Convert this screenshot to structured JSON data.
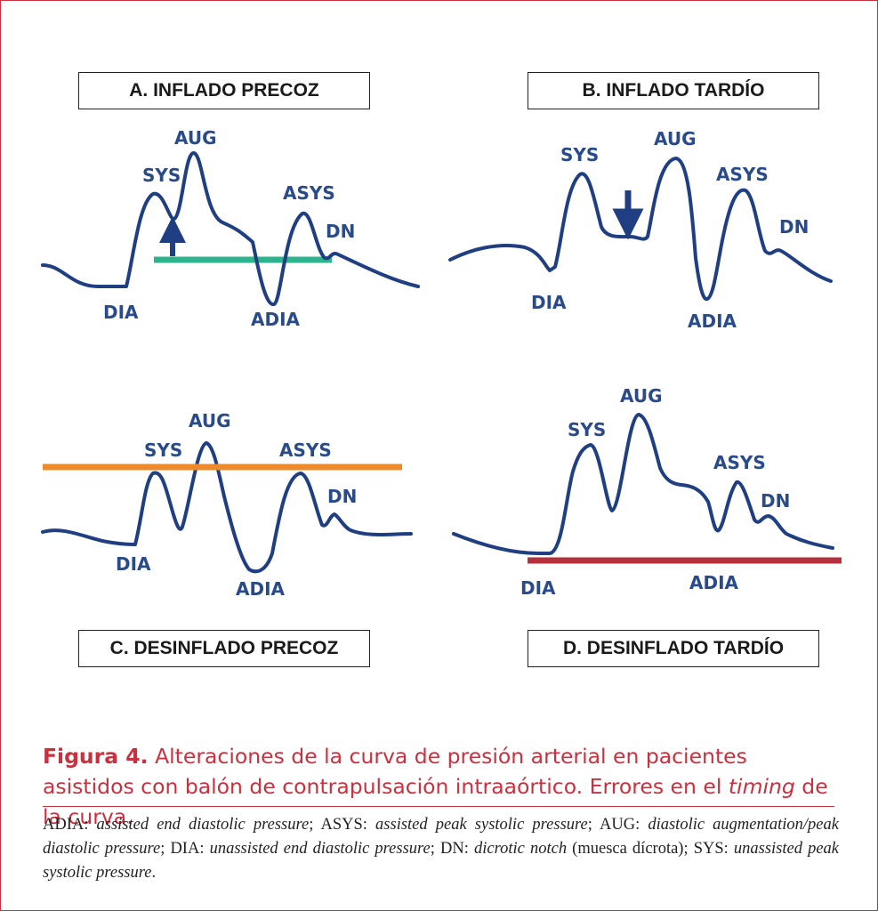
{
  "panels": {
    "a": {
      "title": "A. INFLADO PRECOZ",
      "labels": {
        "aug": "AUG",
        "sys": "SYS",
        "asys": "ASYS",
        "dn": "DN",
        "dia": "DIA",
        "adia": "ADIA"
      },
      "line_color": "#2db38d"
    },
    "b": {
      "title": "B. INFLADO TARDÍO",
      "labels": {
        "aug": "AUG",
        "sys": "SYS",
        "asys": "ASYS",
        "dn": "DN",
        "dia": "DIA",
        "adia": "ADIA"
      }
    },
    "c": {
      "title": "C. DESINFLADO PRECOZ",
      "labels": {
        "aug": "AUG",
        "sys": "SYS",
        "asys": "ASYS",
        "dn": "DN",
        "dia": "DIA",
        "adia": "ADIA"
      },
      "line_color": "#ee8a2a"
    },
    "d": {
      "title": "D. DESINFLADO TARDÍO",
      "labels": {
        "aug": "AUG",
        "sys": "SYS",
        "asys": "ASYS",
        "dn": "DN",
        "dia": "DIA",
        "adia": "ADIA"
      },
      "line_color": "#b5303c"
    }
  },
  "colors": {
    "wave": "#1f3f82",
    "frame": "#c9313f",
    "arrow": "#1f3f82"
  },
  "caption": {
    "figure_label": "Figura 4.",
    "text": "Alteraciones de la curva de presión arterial en pacientes asistidos con balón de contrapulsación intraaórtico. Errores en el ",
    "italic": "timing",
    "text_end": " de la curva."
  },
  "legend": [
    {
      "abbr": "ADIA: ",
      "desc": "assisted end diastolic pressure",
      "sep": "; "
    },
    {
      "abbr": "ASYS: ",
      "desc": "assisted peak systolic pressure",
      "sep": "; "
    },
    {
      "abbr": "AUG: ",
      "desc": "diastolic augmentation/peak diastolic pressure",
      "sep": "; "
    },
    {
      "abbr": "DIA: ",
      "desc": "unassisted end diastolic pressure",
      "sep": "; "
    },
    {
      "abbr": "DN: ",
      "desc": "dicrotic notch",
      "sep": " (muesca dícrota); "
    },
    {
      "abbr": "SYS: ",
      "desc": "unassisted peak systolic pressure",
      "sep": "."
    }
  ]
}
